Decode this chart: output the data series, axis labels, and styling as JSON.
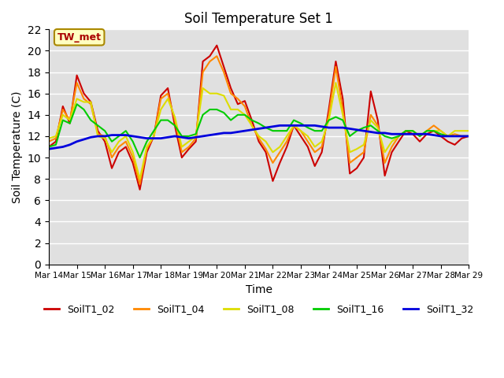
{
  "title": "Soil Temperature Set 1",
  "xlabel": "Time",
  "ylabel": "Soil Temperature (C)",
  "annotation": "TW_met",
  "ylim": [
    0,
    22
  ],
  "yticks": [
    0,
    2,
    4,
    6,
    8,
    10,
    12,
    14,
    16,
    18,
    20,
    22
  ],
  "xtick_labels": [
    "Mar 14",
    "Mar 15",
    "Mar 16",
    "Mar 17",
    "Mar 18",
    "Mar 19",
    "Mar 20",
    "Mar 21",
    "Mar 22",
    "Mar 23",
    "Mar 24",
    "Mar 25",
    "Mar 26",
    "Mar 27",
    "Mar 28",
    "Mar 29"
  ],
  "series_colors": {
    "SoilT1_02": "#cc0000",
    "SoilT1_04": "#ff8800",
    "SoilT1_08": "#dddd00",
    "SoilT1_16": "#00cc00",
    "SoilT1_32": "#0000dd"
  },
  "SoilT1_02": [
    11.0,
    11.5,
    14.8,
    13.2,
    17.7,
    16.0,
    15.2,
    12.5,
    11.5,
    9.0,
    10.5,
    11.0,
    9.5,
    7.0,
    10.5,
    12.0,
    15.8,
    16.5,
    13.0,
    10.0,
    10.8,
    11.5,
    19.0,
    19.5,
    20.5,
    18.5,
    16.5,
    15.0,
    15.3,
    13.5,
    11.5,
    10.5,
    7.8,
    9.5,
    11.0,
    13.0,
    12.0,
    11.0,
    9.2,
    10.5,
    14.5,
    19.0,
    15.5,
    8.5,
    9.0,
    10.0,
    16.2,
    13.5,
    8.3,
    10.5,
    11.5,
    12.5,
    12.2,
    11.5,
    12.2,
    12.5,
    12.0,
    11.5,
    11.2,
    11.8,
    12.0
  ],
  "SoilT1_04": [
    11.5,
    11.8,
    14.5,
    13.5,
    17.0,
    15.5,
    15.0,
    12.2,
    12.0,
    10.0,
    11.0,
    11.5,
    10.0,
    7.5,
    10.8,
    12.0,
    15.5,
    16.0,
    13.5,
    10.5,
    11.0,
    11.8,
    18.0,
    19.0,
    19.5,
    18.0,
    16.0,
    15.5,
    14.8,
    13.0,
    11.8,
    10.8,
    9.5,
    10.5,
    11.5,
    13.0,
    12.5,
    11.5,
    10.5,
    11.0,
    14.0,
    18.5,
    14.5,
    9.5,
    10.0,
    10.5,
    14.0,
    13.0,
    9.5,
    11.0,
    12.0,
    12.5,
    12.5,
    12.0,
    12.5,
    13.0,
    12.5,
    12.0,
    12.2,
    12.0,
    12.0
  ],
  "SoilT1_08": [
    11.8,
    12.0,
    14.0,
    13.5,
    15.5,
    15.2,
    15.2,
    12.0,
    11.8,
    10.5,
    11.5,
    12.0,
    10.5,
    8.0,
    11.0,
    12.0,
    14.5,
    15.5,
    13.8,
    11.0,
    11.5,
    12.0,
    16.5,
    16.0,
    16.0,
    15.8,
    14.5,
    14.5,
    14.0,
    13.0,
    12.0,
    11.5,
    10.5,
    11.0,
    12.0,
    13.0,
    12.5,
    12.0,
    11.0,
    11.5,
    13.5,
    17.0,
    14.0,
    10.5,
    10.8,
    11.2,
    13.5,
    12.8,
    10.5,
    11.5,
    12.0,
    12.5,
    12.5,
    12.0,
    12.5,
    12.5,
    12.5,
    12.0,
    12.5,
    12.5,
    12.5
  ],
  "SoilT1_16": [
    11.0,
    11.2,
    13.5,
    13.2,
    15.0,
    14.5,
    13.5,
    13.0,
    12.5,
    11.5,
    12.0,
    12.5,
    11.5,
    10.0,
    11.5,
    12.5,
    13.5,
    13.5,
    13.0,
    12.0,
    12.0,
    12.2,
    14.0,
    14.5,
    14.5,
    14.2,
    13.5,
    14.0,
    14.0,
    13.5,
    13.2,
    12.8,
    12.5,
    12.5,
    12.5,
    13.5,
    13.2,
    12.8,
    12.5,
    12.5,
    13.5,
    13.8,
    13.5,
    12.0,
    12.5,
    12.8,
    13.0,
    12.5,
    12.0,
    11.8,
    12.0,
    12.5,
    12.5,
    12.0,
    12.5,
    12.5,
    12.2,
    12.0,
    12.0,
    12.0,
    12.0
  ],
  "SoilT1_32": [
    10.8,
    10.9,
    11.0,
    11.2,
    11.5,
    11.7,
    11.9,
    12.0,
    12.0,
    12.1,
    12.1,
    12.1,
    12.0,
    11.9,
    11.8,
    11.8,
    11.8,
    11.9,
    12.0,
    11.9,
    11.8,
    11.9,
    12.0,
    12.1,
    12.2,
    12.3,
    12.3,
    12.4,
    12.5,
    12.6,
    12.7,
    12.8,
    12.9,
    13.0,
    13.0,
    13.0,
    13.0,
    13.0,
    13.0,
    12.9,
    12.8,
    12.8,
    12.8,
    12.7,
    12.6,
    12.5,
    12.4,
    12.3,
    12.3,
    12.2,
    12.2,
    12.2,
    12.2,
    12.2,
    12.2,
    12.1,
    12.0,
    12.0,
    12.0,
    12.0,
    12.0
  ]
}
